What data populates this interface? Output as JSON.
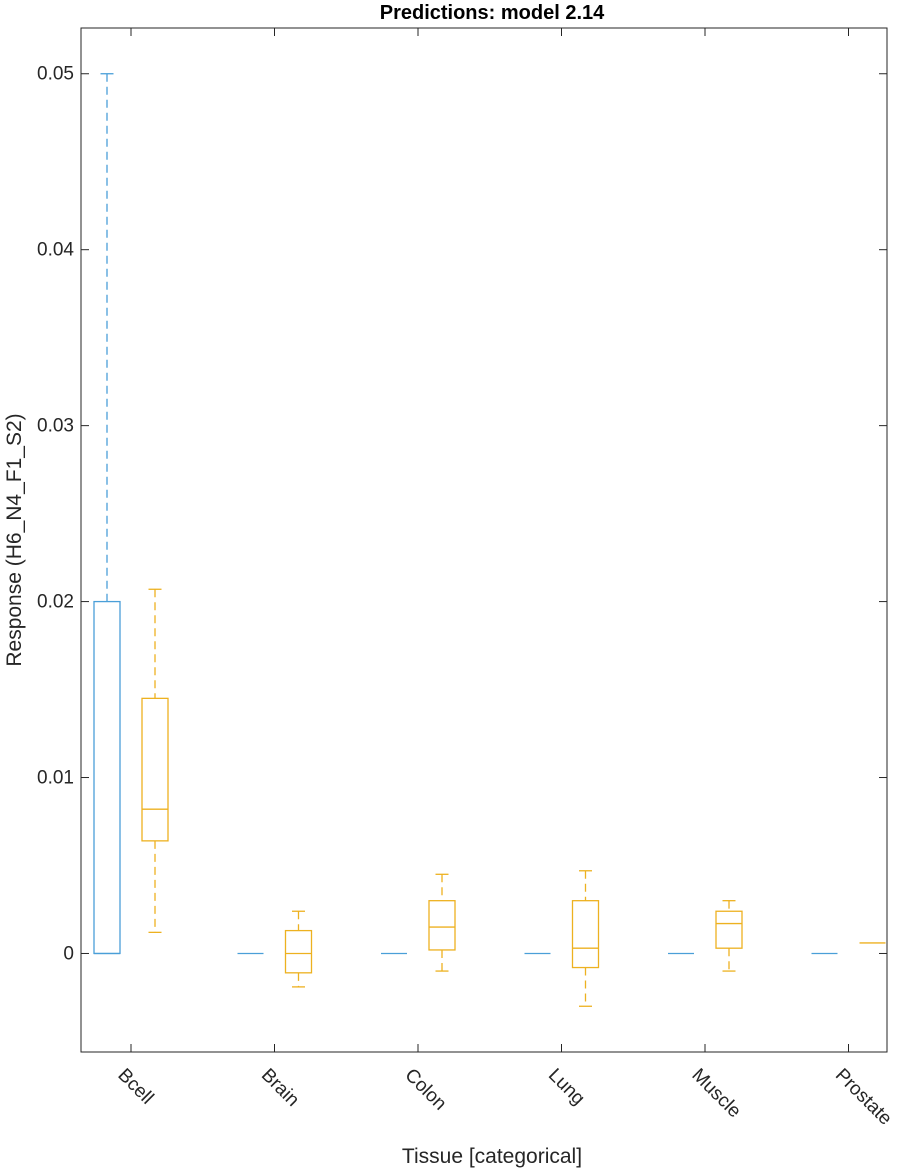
{
  "chart_data": {
    "type": "boxplot",
    "title": "Predictions: model 2.14",
    "xlabel": "Tissue [categorical]",
    "ylabel": "Response (H6_N4_F1_S2)",
    "ylim": [
      -0.0056,
      0.0526
    ],
    "yticks": [
      0,
      0.01,
      0.02,
      0.03,
      0.04,
      0.05
    ],
    "ytick_labels": [
      "0",
      "0.01",
      "0.02",
      "0.03",
      "0.04",
      "0.05"
    ],
    "categories": [
      "Bcell",
      "Brain",
      "Colon",
      "Lung",
      "Muscle",
      "Prostate"
    ],
    "grid": false,
    "series": [
      {
        "color": "#4a9fd8",
        "boxes": [
          {
            "category": "Bcell",
            "whisker_low": 0,
            "q1": 0,
            "median": 0,
            "q3": 0.02,
            "whisker_high": 0.05
          },
          {
            "category": "Brain",
            "whisker_low": 0,
            "q1": 0,
            "median": 0,
            "q3": 0,
            "whisker_high": 0
          },
          {
            "category": "Colon",
            "whisker_low": 0,
            "q1": 0,
            "median": 0,
            "q3": 0,
            "whisker_high": 0
          },
          {
            "category": "Lung",
            "whisker_low": 0,
            "q1": 0,
            "median": 0,
            "q3": 0,
            "whisker_high": 0
          },
          {
            "category": "Muscle",
            "whisker_low": 0,
            "q1": 0,
            "median": 0,
            "q3": 0,
            "whisker_high": 0
          },
          {
            "category": "Prostate",
            "whisker_low": 0,
            "q1": 0,
            "median": 0,
            "q3": 0,
            "whisker_high": 0
          }
        ]
      },
      {
        "color": "#edb120",
        "boxes": [
          {
            "category": "Bcell",
            "whisker_low": 0.0012,
            "q1": 0.0064,
            "median": 0.0082,
            "q3": 0.0145,
            "whisker_high": 0.0207
          },
          {
            "category": "Brain",
            "whisker_low": -0.0019,
            "q1": -0.0011,
            "median": 0,
            "q3": 0.0013,
            "whisker_high": 0.0024
          },
          {
            "category": "Colon",
            "whisker_low": -0.001,
            "q1": 0.0002,
            "median": 0.0015,
            "q3": 0.003,
            "whisker_high": 0.0045
          },
          {
            "category": "Lung",
            "whisker_low": -0.003,
            "q1": -0.0008,
            "median": 0.0003,
            "q3": 0.003,
            "whisker_high": 0.0047
          },
          {
            "category": "Muscle",
            "whisker_low": -0.001,
            "q1": 0.0003,
            "median": 0.0017,
            "q3": 0.0024,
            "whisker_high": 0.003
          },
          {
            "category": "Prostate",
            "whisker_low": 0.0006,
            "q1": 0.0006,
            "median": 0.0006,
            "q3": 0.0006,
            "whisker_high": 0.0006
          }
        ]
      }
    ]
  }
}
